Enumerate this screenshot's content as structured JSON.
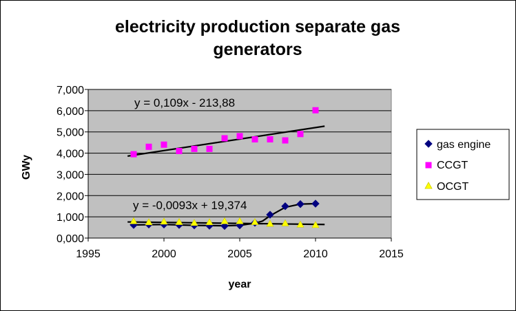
{
  "chart_data": {
    "type": "scatter",
    "title_line1": "electricity production separate gas",
    "title_line2": "generators",
    "xlabel": "year",
    "ylabel": "GWy",
    "xlim": [
      1995,
      2015
    ],
    "ylim": [
      0,
      7000
    ],
    "xticks": [
      1995,
      2000,
      2005,
      2010,
      2015
    ],
    "yticks": [
      0,
      1000,
      2000,
      3000,
      4000,
      5000,
      6000,
      7000
    ],
    "ytick_labels": [
      "0,000",
      "1,000",
      "2,000",
      "3,000",
      "4,000",
      "5,000",
      "6,000",
      "7,000"
    ],
    "grid": "horizontal",
    "legend_position": "right",
    "series": [
      {
        "name": "gas engine",
        "marker": "diamond",
        "color": "#000080",
        "x": [
          1998,
          1999,
          2000,
          2001,
          2002,
          2003,
          2004,
          2005,
          2006,
          2007,
          2008,
          2009,
          2010
        ],
        "y": [
          620,
          640,
          640,
          620,
          600,
          580,
          570,
          600,
          720,
          1100,
          1500,
          1600,
          1620
        ]
      },
      {
        "name": "CCGT",
        "marker": "square",
        "color": "#FF00FF",
        "x": [
          1998,
          1999,
          2000,
          2001,
          2002,
          2003,
          2004,
          2005,
          2006,
          2007,
          2008,
          2009,
          2010
        ],
        "y": [
          3950,
          4300,
          4400,
          4100,
          4200,
          4200,
          4700,
          4800,
          4650,
          4650,
          4600,
          4900,
          6020
        ]
      },
      {
        "name": "OCGT",
        "marker": "triangle",
        "color": "#FFFF00",
        "x": [
          1998,
          1999,
          2000,
          2001,
          2002,
          2003,
          2004,
          2005,
          2006,
          2007,
          2008,
          2009,
          2010
        ],
        "y": [
          800,
          750,
          780,
          760,
          720,
          750,
          800,
          800,
          760,
          680,
          700,
          640,
          620
        ]
      }
    ],
    "trendlines": [
      {
        "label": "y = 0,109x - 213,88",
        "x": [
          1997.6,
          2010.6
        ],
        "y": [
          3860,
          5270
        ]
      },
      {
        "label": "y = -0,0093x + 19,374",
        "x": [
          1997.6,
          2010.6
        ],
        "y": [
          760,
          640
        ]
      }
    ],
    "smooth_line": {
      "x": [
        1998,
        2000,
        2002,
        2004,
        2005,
        2006,
        2006.5,
        2007,
        2008,
        2009,
        2010
      ],
      "y": [
        620,
        640,
        600,
        580,
        600,
        700,
        800,
        1050,
        1450,
        1600,
        1620
      ]
    }
  },
  "colors": {
    "plot_bg": "#C0C0C0",
    "grid": "#000000",
    "trend": "#000000"
  }
}
